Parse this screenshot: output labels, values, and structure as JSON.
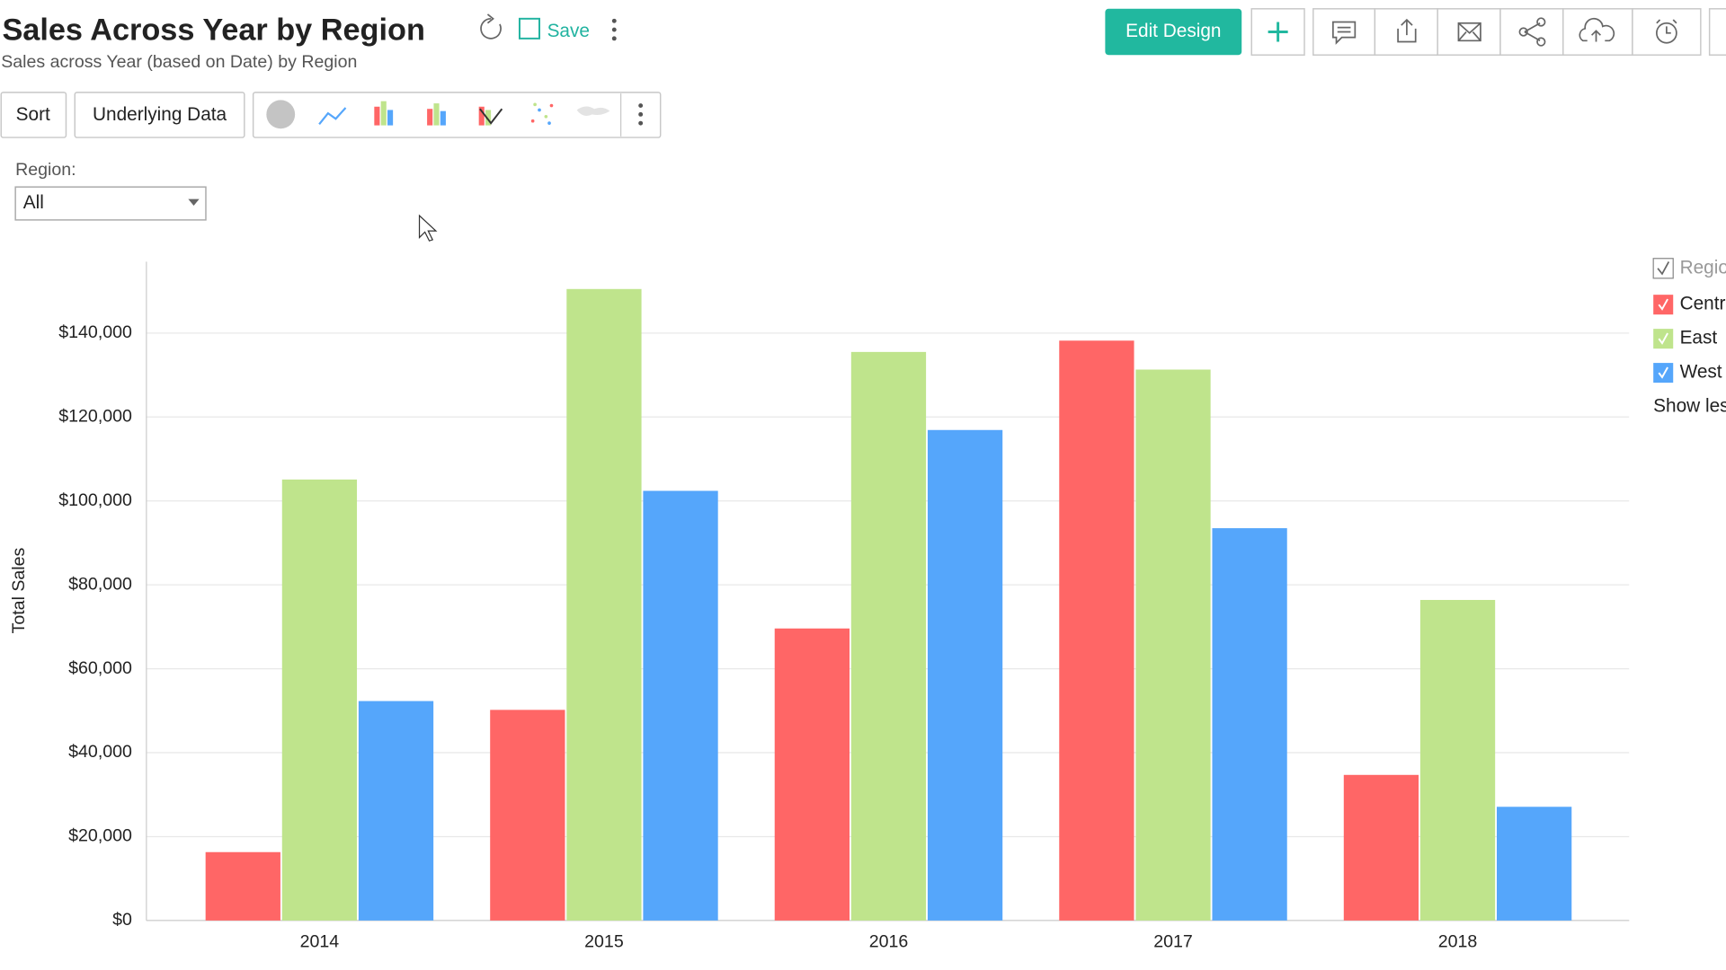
{
  "header": {
    "title": "Sales Across Year by Region",
    "save": "Save",
    "subtitle": "Sales across Year (based on Date) by Region",
    "edit_design": "Edit Design"
  },
  "toolbar": {
    "sort": "Sort",
    "underlying_data": "Underlying Data"
  },
  "filter": {
    "label": "Region:",
    "value": "All"
  },
  "chart_data": {
    "type": "bar",
    "y_label": "Total Sales",
    "categories": [
      "2014",
      "2015",
      "2016",
      "2017",
      "2018"
    ],
    "series": [
      {
        "name": "Centr",
        "color": "#ff6666",
        "values": [
          16300,
          50200,
          69600,
          138200,
          34700
        ]
      },
      {
        "name": "East",
        "color": "#bfe48c",
        "values": [
          105100,
          150500,
          135500,
          131300,
          76400
        ]
      },
      {
        "name": "West",
        "color": "#55a6fb",
        "values": [
          52300,
          102400,
          116900,
          93500,
          27100
        ]
      }
    ],
    "ylim": [
      0,
      157000
    ],
    "yticks": [
      {
        "value": 0,
        "label": "$0"
      },
      {
        "value": 20000,
        "label": "$20,000"
      },
      {
        "value": 40000,
        "label": "$40,000"
      },
      {
        "value": 60000,
        "label": "$60,000"
      },
      {
        "value": 80000,
        "label": "$80,000"
      },
      {
        "value": 100000,
        "label": "$100,000"
      },
      {
        "value": 120000,
        "label": "$120,000"
      },
      {
        "value": 140000,
        "label": "$140,000"
      }
    ],
    "grid": true,
    "legend": {
      "title": "Regio",
      "position": "right",
      "more": "Show les"
    }
  }
}
